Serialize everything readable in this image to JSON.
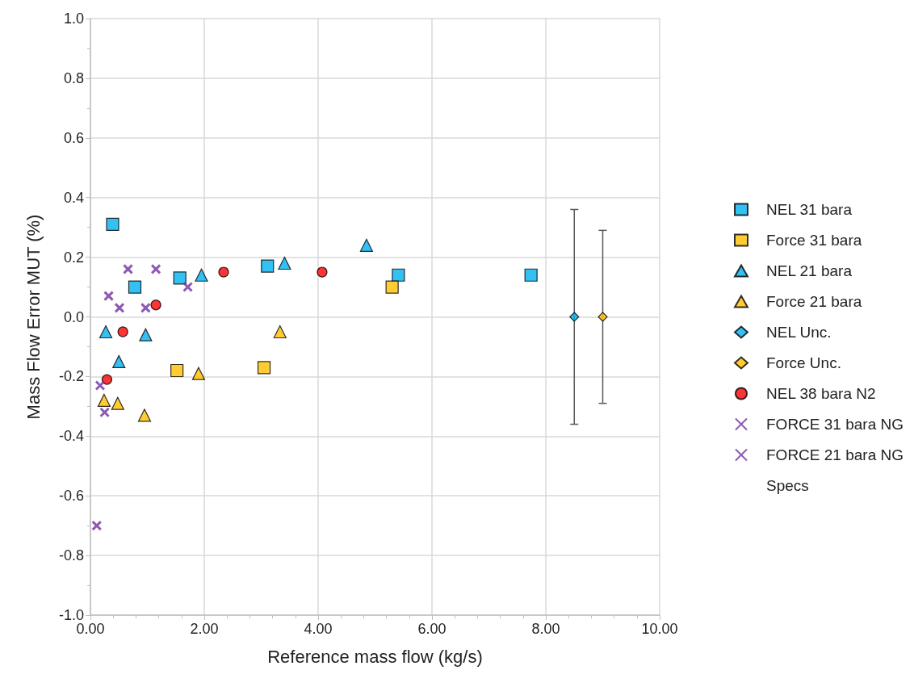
{
  "chart_data": {
    "type": "scatter",
    "xlabel": "Reference mass flow (kg/s)",
    "ylabel": "Mass Flow Error MUT (%)",
    "xlim": [
      0,
      10
    ],
    "xticks": [
      {
        "value": 0,
        "label": "0.00"
      },
      {
        "value": 2,
        "label": "2.00"
      },
      {
        "value": 4,
        "label": "4.00"
      },
      {
        "value": 6,
        "label": "6.00"
      },
      {
        "value": 8,
        "label": "8.00"
      },
      {
        "value": 10,
        "label": "10.00"
      }
    ],
    "ylim": [
      -1,
      1
    ],
    "yticks": [
      {
        "value": -1,
        "label": "-1.0"
      },
      {
        "value": -0.8,
        "label": "-0.8"
      },
      {
        "value": -0.6,
        "label": "-0.6"
      },
      {
        "value": -0.4,
        "label": "-0.4"
      },
      {
        "value": -0.2,
        "label": "-0.2"
      },
      {
        "value": 0,
        "label": "0.0"
      },
      {
        "value": 0.2,
        "label": "0.2"
      },
      {
        "value": 0.4,
        "label": "0.4"
      },
      {
        "value": 0.6,
        "label": "0.6"
      },
      {
        "value": 0.8,
        "label": "0.8"
      },
      {
        "value": 1,
        "label": "1.0"
      }
    ],
    "grid": true,
    "legend": "right",
    "series": [
      {
        "name": "NEL 31 bara",
        "color": "#00b0f0",
        "marker": "square",
        "x": [
          0.39,
          0.78,
          1.57,
          3.11,
          5.41,
          7.74
        ],
        "values": [
          0.31,
          0.1,
          0.13,
          0.17,
          0.14,
          0.14
        ]
      },
      {
        "name": "Force 31 bara",
        "color": "#ffc000",
        "marker": "square",
        "x": [
          1.52,
          3.05,
          5.3
        ],
        "values": [
          -0.18,
          -0.17,
          0.1
        ]
      },
      {
        "name": "NEL 21 bara",
        "color": "#00b0f0",
        "marker": "triangle",
        "x": [
          0.27,
          0.5,
          0.97,
          1.95,
          3.41,
          4.85
        ],
        "values": [
          -0.05,
          -0.15,
          -0.06,
          0.14,
          0.18,
          0.24
        ]
      },
      {
        "name": "Force 21 bara",
        "color": "#ffc000",
        "marker": "triangle",
        "x": [
          0.24,
          0.48,
          0.95,
          1.9,
          3.33
        ],
        "values": [
          -0.28,
          -0.29,
          -0.33,
          -0.19,
          -0.05
        ]
      },
      {
        "name": "NEL Unc.",
        "color": "#00b0f0",
        "marker": "diamond",
        "x": [
          8.5
        ],
        "values": [
          0
        ],
        "errors": [
          0.36
        ]
      },
      {
        "name": "Force Unc.",
        "color": "#ffc000",
        "marker": "diamond",
        "x": [
          9.0
        ],
        "values": [
          0
        ],
        "errors": [
          0.29
        ]
      },
      {
        "name": "NEL 38 bara N2",
        "color": "#ff0000",
        "marker": "circle",
        "x": [
          0.29,
          0.57,
          1.15,
          2.34,
          4.07
        ],
        "values": [
          -0.21,
          -0.05,
          0.04,
          0.15,
          0.15
        ]
      },
      {
        "name": "FORCE 31 bara NG",
        "color": "#7030a0",
        "marker": "cross",
        "x": [
          0.11,
          0.17,
          0.25,
          0.51,
          0.97
        ],
        "values": [
          -0.7,
          -0.23,
          -0.32,
          0.03,
          0.03
        ]
      },
      {
        "name": "FORCE 21 bara NG",
        "color": "#7030a0",
        "marker": "cross",
        "x": [
          0.32,
          0.66,
          1.15,
          1.71
        ],
        "values": [
          0.07,
          0.16,
          0.16,
          0.1
        ]
      },
      {
        "name": "Specs",
        "color": "#000000",
        "marker": "none"
      }
    ]
  }
}
